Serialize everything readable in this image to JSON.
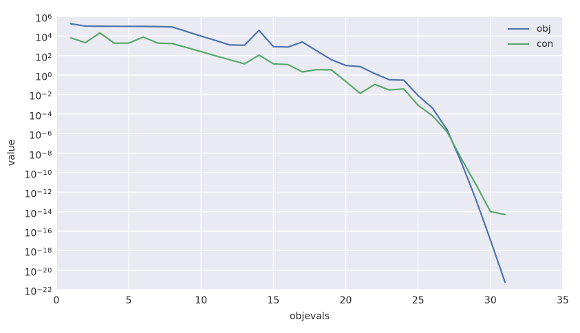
{
  "figure": {
    "background": "#ffffff",
    "plot_background": "#eaeaf2",
    "grid_color": "#ffffff",
    "text_color": "#262626"
  },
  "legend": {
    "entries": [
      {
        "label": "obj",
        "color": "#4c72b0"
      },
      {
        "label": "con",
        "color": "#55a868"
      }
    ]
  },
  "chart_data": {
    "type": "line",
    "title": "",
    "xlabel": "objevals",
    "ylabel": "value",
    "yscale": "log",
    "grid": true,
    "legend_position": "upper right",
    "xlim": [
      0,
      35
    ],
    "ylim_exponents": [
      -22,
      6
    ],
    "x_ticks": [
      0,
      5,
      10,
      15,
      20,
      25,
      30,
      35
    ],
    "y_tick_exponents": [
      6,
      4,
      2,
      0,
      -2,
      -4,
      -6,
      -8,
      -10,
      -12,
      -14,
      -16,
      -18,
      -20,
      -22
    ],
    "x": [
      1,
      2,
      3,
      4,
      5,
      6,
      7,
      8,
      9,
      10,
      11,
      12,
      13,
      14,
      15,
      16,
      17,
      18,
      19,
      20,
      21,
      22,
      23,
      24,
      25,
      26,
      27,
      28,
      29,
      30,
      31
    ],
    "series": [
      {
        "name": "obj",
        "color": "#4c72b0",
        "values": [
          180000,
          105000,
          102000,
          100000,
          98000,
          96000,
          93000,
          85000,
          29000,
          10000,
          3500,
          1200,
          1150,
          38000,
          820,
          750,
          2400,
          300,
          38,
          9.5,
          7.3,
          1.4,
          0.33,
          0.3,
          0.008,
          0.0004,
          2.5e-06,
          1e-09,
          1.7e-13,
          1.2e-17,
          6e-22
        ]
      },
      {
        "name": "con",
        "color": "#55a868",
        "values": [
          6500,
          2100,
          21000,
          1900,
          1850,
          7800,
          1900,
          1700,
          660,
          250,
          94,
          36,
          14,
          110,
          14,
          12,
          2.1,
          3.6,
          3.4,
          0.22,
          0.013,
          0.11,
          0.03,
          0.038,
          0.0008,
          6.5e-05,
          1.5e-06,
          2.5e-09,
          6e-12,
          1e-14,
          5e-15
        ]
      }
    ]
  }
}
